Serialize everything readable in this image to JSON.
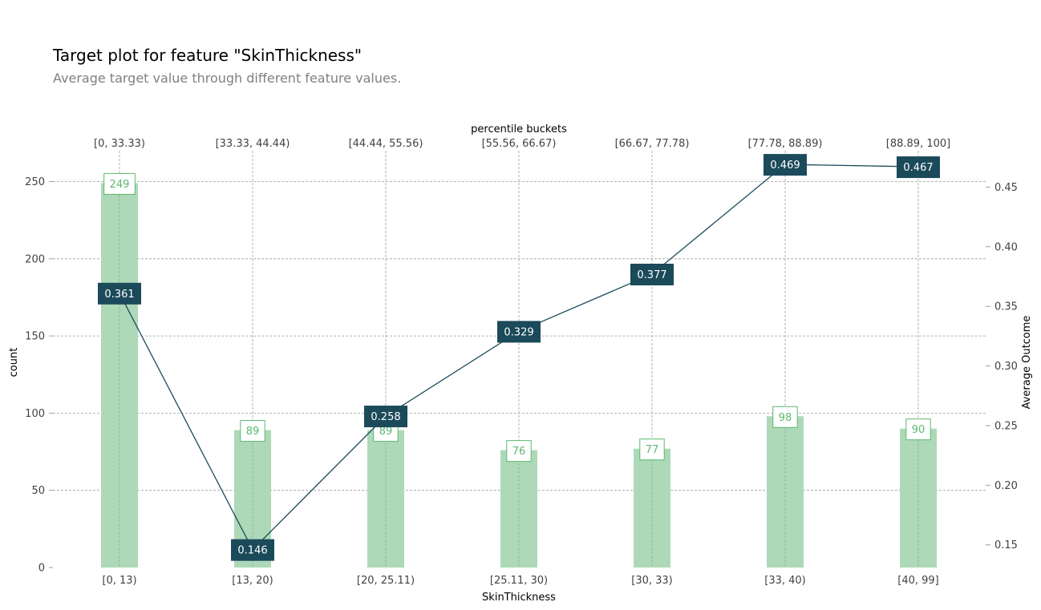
{
  "chart_data": {
    "type": "bar+line",
    "title": "Target plot for feature \"SkinThickness\"",
    "subtitle": "Average target value through different feature values.",
    "xlabel": "SkinThickness",
    "top_axis_label": "percentile buckets",
    "ylabel_left": "count",
    "ylabel_right": "Average Outcome",
    "categories": [
      "[0, 13)",
      "[13, 20)",
      "[20, 25.11)",
      "[25.11, 30)",
      "[30, 33)",
      "[33, 40)",
      "[40, 99]"
    ],
    "percentile_buckets": [
      "[0, 33.33)",
      "[33.33, 44.44)",
      "[44.44, 55.56)",
      "[55.56, 66.67)",
      "[66.67, 77.78)",
      "[77.78, 88.89)",
      "[88.89, 100]"
    ],
    "series": [
      {
        "name": "count",
        "type": "bar",
        "axis": "left",
        "values": [
          249,
          89,
          89,
          76,
          77,
          98,
          90
        ]
      },
      {
        "name": "Average Outcome",
        "type": "line",
        "axis": "right",
        "values": [
          0.361,
          0.146,
          0.258,
          0.329,
          0.377,
          0.469,
          0.467
        ]
      }
    ],
    "bar_labels": [
      "249",
      "89",
      "89",
      "76",
      "77",
      "98",
      "90"
    ],
    "line_labels": [
      "0.361",
      "0.146",
      "0.258",
      "0.329",
      "0.377",
      "0.469",
      "0.467"
    ],
    "ylim_left": [
      0,
      270
    ],
    "yticks_left": [
      "0",
      "50",
      "100",
      "150",
      "200",
      "250"
    ],
    "yticks_left_values": [
      0,
      50,
      100,
      150,
      200,
      250
    ],
    "ylim_right": [
      0.131,
      0.4805
    ],
    "yticks_right": [
      "0.15",
      "0.20",
      "0.25",
      "0.30",
      "0.35",
      "0.40",
      "0.45"
    ],
    "yticks_right_values": [
      0.15,
      0.2,
      0.25,
      0.3,
      0.35,
      0.4,
      0.45
    ],
    "grid": true,
    "colors": {
      "bar": "#add9b8",
      "bar_label": "#5cb86e",
      "line": "#1b4a5a",
      "grid": "#9e9e9e"
    }
  }
}
